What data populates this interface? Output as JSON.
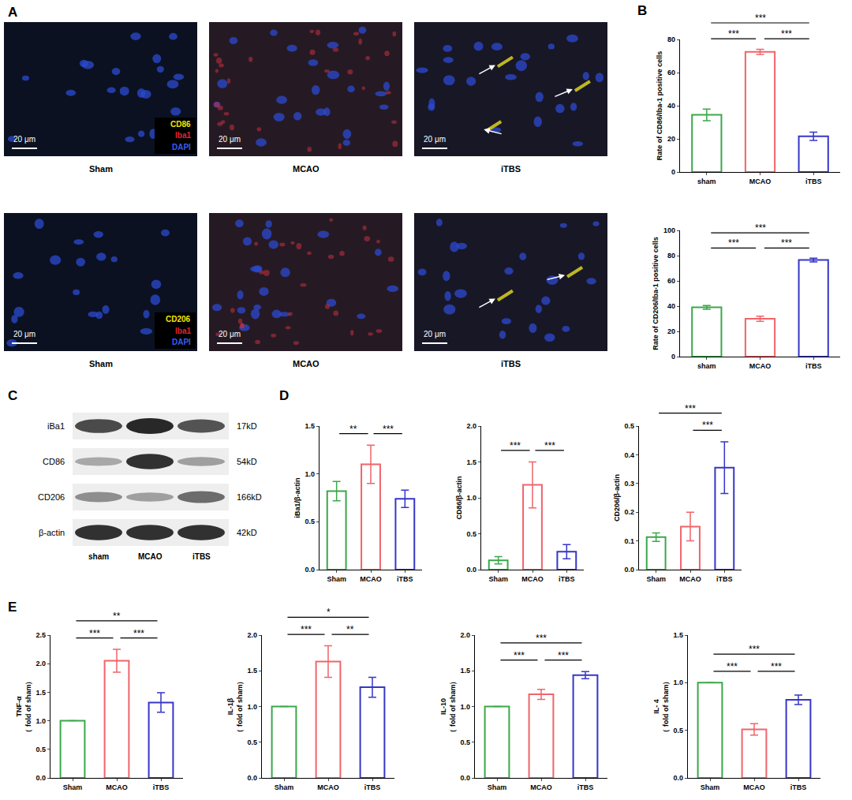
{
  "figure": {
    "panel_letters": [
      "A",
      "B",
      "C",
      "D",
      "E"
    ],
    "microscopy": {
      "scale_bar": "20 μm",
      "rows": [
        {
          "markers": [
            {
              "text": "CD86",
              "color": "#f5e400"
            },
            {
              "text": "Iba1",
              "color": "#e8202a"
            },
            {
              "text": "DAPI",
              "color": "#3a5cf0"
            }
          ],
          "groups": [
            "Sham",
            "MCAO",
            "iTBS"
          ]
        },
        {
          "markers": [
            {
              "text": "CD206",
              "color": "#f5e400"
            },
            {
              "text": "Iba1",
              "color": "#e8202a"
            },
            {
              "text": "DAPI",
              "color": "#3a5cf0"
            }
          ],
          "groups": [
            "Sham",
            "MCAO",
            "iTBS"
          ]
        }
      ]
    },
    "western_blot": {
      "lanes": [
        "sham",
        "MCAO",
        "iTBS"
      ],
      "proteins": [
        {
          "name": "iBa1",
          "size": "17kD",
          "intensity": [
            0.8,
            1.0,
            0.75
          ]
        },
        {
          "name": "CD86",
          "size": "54kD",
          "intensity": [
            0.25,
            0.95,
            0.3
          ]
        },
        {
          "name": "CD206",
          "size": "166kD",
          "intensity": [
            0.4,
            0.3,
            0.6
          ]
        },
        {
          "name": "β-actin",
          "size": "42kD",
          "intensity": [
            0.95,
            0.95,
            0.95
          ]
        }
      ]
    }
  },
  "chart_data": [
    {
      "type": "bar",
      "ylabel": "Rate of CD86/Iba-1 positive cells",
      "categories": [
        "sham",
        "MCAO",
        "iTBS"
      ],
      "values": [
        34.5,
        72.5,
        21.5
      ],
      "errors": [
        3.5,
        1.5,
        2.5
      ],
      "colors": [
        "#3aa84a",
        "#f0646a",
        "#3636c8"
      ],
      "ylim": [
        0,
        80
      ],
      "yticks": [
        0,
        20,
        40,
        60,
        80
      ],
      "comparisons": [
        {
          "from": 0,
          "to": 1,
          "label": "***"
        },
        {
          "from": 1,
          "to": 2,
          "label": "***"
        },
        {
          "from": 0,
          "to": 2,
          "label": "***"
        }
      ]
    },
    {
      "type": "bar",
      "ylabel": "Rate of CD206/Iba-1 positive cells",
      "categories": [
        "sham",
        "MCAO",
        "iTBS"
      ],
      "values": [
        39,
        30,
        76.5
      ],
      "errors": [
        1.5,
        2,
        1.5
      ],
      "colors": [
        "#3aa84a",
        "#f0646a",
        "#3636c8"
      ],
      "ylim": [
        0,
        100
      ],
      "yticks": [
        0,
        20,
        40,
        60,
        80,
        100
      ],
      "comparisons": [
        {
          "from": 0,
          "to": 1,
          "label": "***"
        },
        {
          "from": 1,
          "to": 2,
          "label": "***"
        },
        {
          "from": 0,
          "to": 2,
          "label": "***"
        }
      ]
    },
    {
      "type": "bar",
      "ylabel": "iBa1/β-actin",
      "categories": [
        "Sham",
        "MCAO",
        "iTBS"
      ],
      "values": [
        0.82,
        1.1,
        0.74
      ],
      "errors": [
        0.1,
        0.2,
        0.09
      ],
      "colors": [
        "#3aa84a",
        "#f0646a",
        "#3636c8"
      ],
      "ylim": [
        0,
        1.5
      ],
      "yticks": [
        {
          "value": 0,
          "label": "0.0"
        },
        0.5,
        {
          "value": 1,
          "label": "1.0"
        },
        1.5
      ],
      "comparisons": [
        {
          "from": 0,
          "to": 1,
          "label": "**"
        },
        {
          "from": 1,
          "to": 2,
          "label": "***"
        }
      ]
    },
    {
      "type": "bar",
      "ylabel": "CD86/β-actin",
      "categories": [
        "Sham",
        "MCAO",
        "iTBS"
      ],
      "values": [
        0.13,
        1.18,
        0.25
      ],
      "errors": [
        0.05,
        0.32,
        0.1
      ],
      "colors": [
        "#3aa84a",
        "#f0646a",
        "#3636c8"
      ],
      "ylim": [
        0,
        2
      ],
      "yticks": [
        {
          "value": 0,
          "label": "0.0"
        },
        0.5,
        {
          "value": 1,
          "label": "1.0"
        },
        1.5,
        {
          "value": 2,
          "label": "2.0"
        }
      ],
      "comparisons": [
        {
          "from": 0,
          "to": 1,
          "label": "***"
        },
        {
          "from": 1,
          "to": 2,
          "label": "***"
        }
      ]
    },
    {
      "type": "bar",
      "ylabel": "CD206/β-actin",
      "categories": [
        "Sham",
        "MCAO",
        "iTBS"
      ],
      "values": [
        0.113,
        0.15,
        0.355
      ],
      "errors": [
        0.015,
        0.05,
        0.09
      ],
      "colors": [
        "#3aa84a",
        "#f0646a",
        "#3636c8"
      ],
      "ylim": [
        0,
        0.5
      ],
      "yticks": [
        {
          "value": 0,
          "label": "0.0"
        },
        0.1,
        0.2,
        0.3,
        0.4,
        0.5
      ],
      "comparisons": [
        {
          "from": 1,
          "to": 2,
          "label": "***"
        },
        {
          "from": 0,
          "to": 2,
          "label": "***"
        }
      ]
    },
    {
      "type": "bar",
      "ylabel": [
        "TNF-α",
        "（ fold of sham）"
      ],
      "categories": [
        "Sham",
        "MCAO",
        "iTBS"
      ],
      "values": [
        1,
        2.05,
        1.32
      ],
      "errors": [
        0,
        0.2,
        0.17
      ],
      "colors": [
        "#3aa84a",
        "#f0646a",
        "#3636c8"
      ],
      "ylim": [
        0,
        2.5
      ],
      "yticks": [
        {
          "value": 0,
          "label": "0.0"
        },
        0.5,
        {
          "value": 1,
          "label": "1.0"
        },
        1.5,
        {
          "value": 2,
          "label": "2.0"
        },
        2.5
      ],
      "comparisons": [
        {
          "from": 0,
          "to": 1,
          "label": "***"
        },
        {
          "from": 1,
          "to": 2,
          "label": "***"
        },
        {
          "from": 0,
          "to": 2,
          "label": "**"
        }
      ]
    },
    {
      "type": "bar",
      "ylabel": [
        "IL-1β",
        "（ fold of sham）"
      ],
      "categories": [
        "Sham",
        "MCAO",
        "iTBS"
      ],
      "values": [
        1,
        1.63,
        1.27
      ],
      "errors": [
        0,
        0.22,
        0.14
      ],
      "colors": [
        "#3aa84a",
        "#f0646a",
        "#3636c8"
      ],
      "ylim": [
        0,
        2
      ],
      "yticks": [
        {
          "value": 0,
          "label": "0.0"
        },
        0.5,
        {
          "value": 1,
          "label": "1.0"
        },
        1.5,
        {
          "value": 2,
          "label": "2.0"
        }
      ],
      "comparisons": [
        {
          "from": 0,
          "to": 1,
          "label": "***"
        },
        {
          "from": 1,
          "to": 2,
          "label": "**"
        },
        {
          "from": 0,
          "to": 2,
          "label": "*"
        }
      ]
    },
    {
      "type": "bar",
      "ylabel": [
        "IL-10",
        "（ fold of sham）"
      ],
      "categories": [
        "Sham",
        "MCAO",
        "iTBS"
      ],
      "values": [
        1,
        1.17,
        1.44
      ],
      "errors": [
        0,
        0.07,
        0.05
      ],
      "colors": [
        "#3aa84a",
        "#f0646a",
        "#3636c8"
      ],
      "ylim": [
        0,
        2
      ],
      "yticks": [
        {
          "value": 0,
          "label": "0.0"
        },
        0.5,
        {
          "value": 1,
          "label": "1.0"
        },
        1.5,
        {
          "value": 2,
          "label": "2.0"
        }
      ],
      "comparisons": [
        {
          "from": 0,
          "to": 1,
          "label": "***"
        },
        {
          "from": 1,
          "to": 2,
          "label": "***"
        },
        {
          "from": 0,
          "to": 2,
          "label": "***"
        }
      ]
    },
    {
      "type": "bar",
      "ylabel": [
        "IL- 4",
        "（ fold of sham）"
      ],
      "categories": [
        "Sham",
        "MCAO",
        "iTBS"
      ],
      "values": [
        1,
        0.51,
        0.82
      ],
      "errors": [
        0,
        0.06,
        0.05
      ],
      "colors": [
        "#3aa84a",
        "#f0646a",
        "#3636c8"
      ],
      "ylim": [
        0,
        1.5
      ],
      "yticks": [
        {
          "value": 0,
          "label": "0.0"
        },
        0.5,
        {
          "value": 1,
          "label": "1.0"
        },
        1.5
      ],
      "comparisons": [
        {
          "from": 0,
          "to": 1,
          "label": "***"
        },
        {
          "from": 1,
          "to": 2,
          "label": "***"
        },
        {
          "from": 0,
          "to": 2,
          "label": "***"
        }
      ]
    }
  ]
}
